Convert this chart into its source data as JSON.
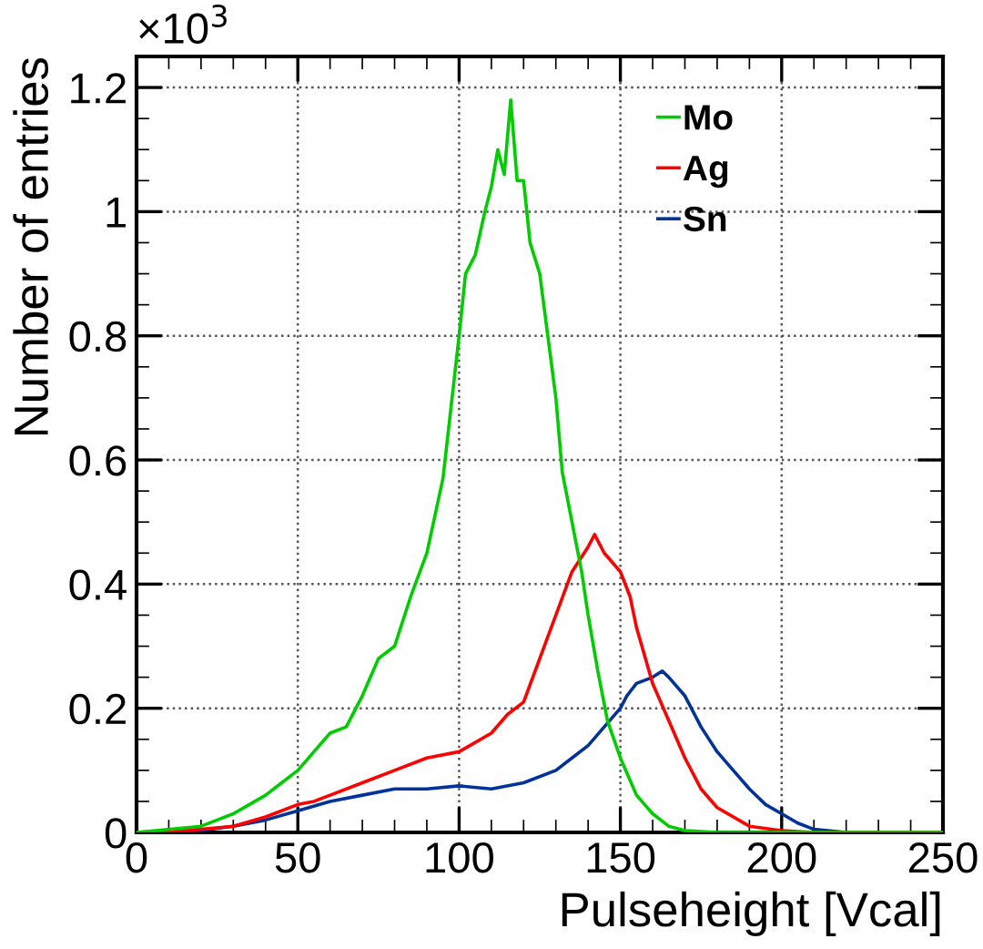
{
  "chart_data": {
    "type": "line",
    "xlabel": "Pulseheight [Vcal]",
    "ylabel": "Number of entries",
    "annotations": [
      "×10$^{3}$"
    ],
    "xlim": [
      0,
      250
    ],
    "xticks": [
      0,
      50,
      100,
      150,
      200,
      250
    ],
    "ylim": [
      0,
      1.25
    ],
    "yticks": [
      0,
      0.2,
      0.4,
      0.6,
      0.8,
      1,
      1.2
    ],
    "grid": true,
    "legend": "top right",
    "line_style": "solid",
    "series": [
      {
        "name": "Mo",
        "color": "#00cc00",
        "x": [
          0,
          20,
          25,
          30,
          35,
          40,
          45,
          50,
          55,
          60,
          65,
          70,
          75,
          80,
          85,
          90,
          95,
          100,
          102,
          105,
          108,
          110,
          112,
          114,
          116,
          118,
          120,
          122,
          125,
          128,
          130,
          132,
          135,
          138,
          140,
          143,
          146,
          150,
          155,
          160,
          165,
          170,
          180,
          250
        ],
        "values": [
          0,
          0.01,
          0.02,
          0.03,
          0.045,
          0.06,
          0.08,
          0.1,
          0.13,
          0.16,
          0.17,
          0.22,
          0.28,
          0.3,
          0.38,
          0.45,
          0.57,
          0.8,
          0.9,
          0.93,
          1.0,
          1.04,
          1.1,
          1.06,
          1.18,
          1.05,
          1.05,
          0.95,
          0.9,
          0.78,
          0.7,
          0.58,
          0.5,
          0.42,
          0.35,
          0.26,
          0.18,
          0.12,
          0.06,
          0.03,
          0.01,
          0.003,
          0,
          0
        ]
      },
      {
        "name": "Ag",
        "color": "#ff0000",
        "x": [
          0,
          20,
          30,
          40,
          50,
          55,
          60,
          70,
          80,
          90,
          100,
          110,
          115,
          120,
          125,
          130,
          135,
          140,
          142,
          145,
          150,
          153,
          155,
          160,
          165,
          170,
          175,
          180,
          190,
          200,
          210,
          250
        ],
        "values": [
          0,
          0.005,
          0.01,
          0.025,
          0.045,
          0.05,
          0.06,
          0.08,
          0.1,
          0.12,
          0.13,
          0.16,
          0.19,
          0.21,
          0.28,
          0.35,
          0.42,
          0.46,
          0.48,
          0.45,
          0.42,
          0.38,
          0.33,
          0.24,
          0.18,
          0.12,
          0.07,
          0.04,
          0.01,
          0.003,
          0,
          0
        ]
      },
      {
        "name": "Sn",
        "color": "#003399",
        "x": [
          0,
          20,
          30,
          40,
          50,
          60,
          70,
          80,
          90,
          100,
          110,
          120,
          130,
          135,
          140,
          145,
          150,
          152,
          155,
          160,
          163,
          165,
          170,
          175,
          180,
          185,
          190,
          195,
          200,
          205,
          210,
          220,
          250
        ],
        "values": [
          0,
          0.003,
          0.01,
          0.02,
          0.035,
          0.05,
          0.06,
          0.07,
          0.07,
          0.075,
          0.07,
          0.08,
          0.1,
          0.12,
          0.14,
          0.17,
          0.2,
          0.22,
          0.24,
          0.25,
          0.26,
          0.25,
          0.22,
          0.17,
          0.13,
          0.1,
          0.07,
          0.045,
          0.03,
          0.015,
          0.005,
          0,
          0
        ]
      }
    ]
  }
}
